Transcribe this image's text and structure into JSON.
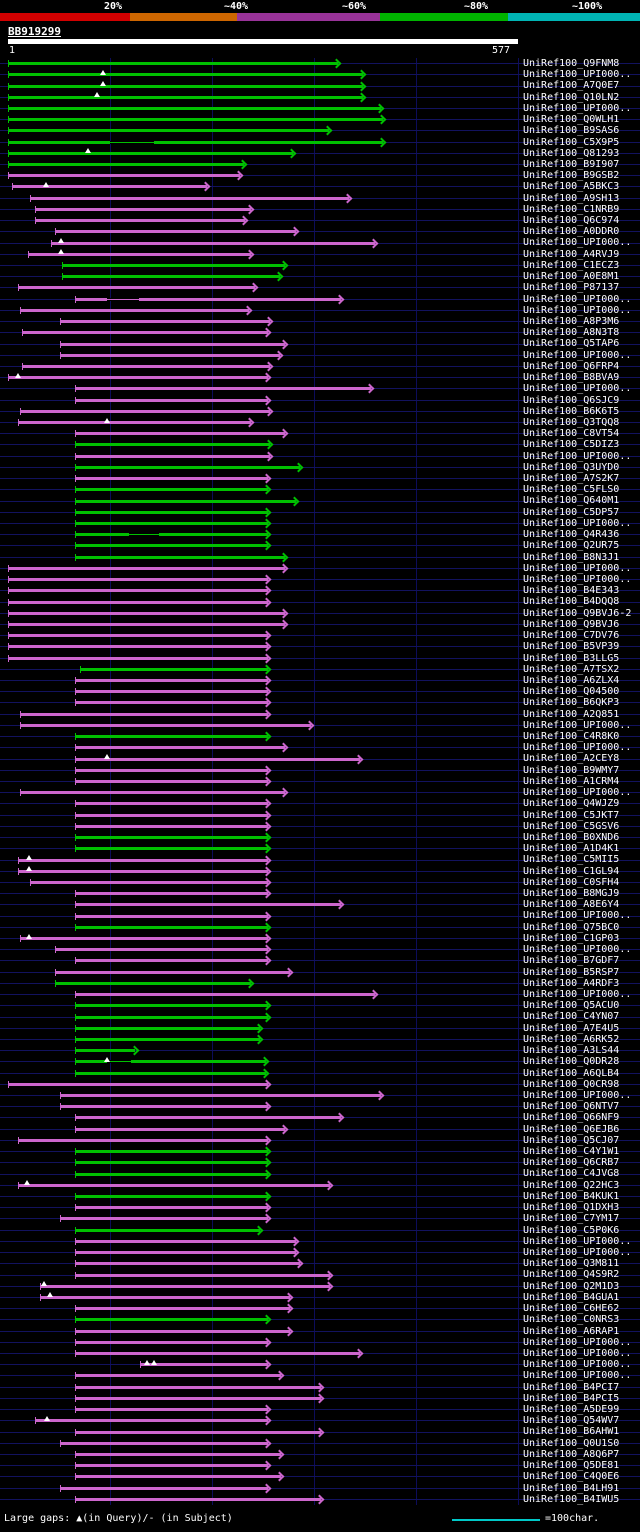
{
  "header": {
    "query_id": "BB919299"
  },
  "ruler": {
    "start": "1",
    "end": "577"
  },
  "scalebar": {
    "labels": [
      "20%",
      "~40%",
      "~60%",
      "~80%",
      "~100%"
    ],
    "segments": [
      {
        "color": "#d20000",
        "to_frac": 0.203
      },
      {
        "color": "#cd6600",
        "to_frac": 0.37
      },
      {
        "color": "#993399",
        "to_frac": 0.594
      },
      {
        "color": "#00b400",
        "to_frac": 0.794
      },
      {
        "color": "#00b4b4",
        "to_frac": 1.0
      }
    ]
  },
  "footer": {
    "gaps_legend": "Large gaps: ▲(in Query)/- (in Subject)",
    "scale_legend": "=100char.",
    "scale_line_color": "#00c8c8"
  },
  "chart_data": {
    "type": "bar",
    "subtype": "blast-alignment-overview",
    "query_length": 577,
    "colors": {
      "green": "#00c000",
      "purple": "#cc66cc"
    },
    "row_format": [
      "label",
      "color",
      "query_start",
      "query_end",
      "query_gap_positions",
      "subject_gap_ranges"
    ],
    "rows": [
      [
        "UniRef100_Q9FNM8",
        "green",
        1,
        374,
        []
      ],
      [
        "UniRef100_UPI000..",
        "green",
        1,
        402,
        [
          108
        ]
      ],
      [
        "UniRef100_A7Q0E7",
        "green",
        1,
        402,
        [
          108
        ]
      ],
      [
        "UniRef100_Q10LN2",
        "green",
        1,
        402,
        [
          102
        ]
      ],
      [
        "UniRef100_UPI000..",
        "green",
        1,
        422,
        []
      ],
      [
        "UniRef100_Q0WLH1",
        "green",
        1,
        424,
        []
      ],
      [
        "UniRef100_B9SAS6",
        "green",
        1,
        363,
        []
      ],
      [
        "UniRef100_C5X9P5",
        "green",
        1,
        424,
        [],
        [
          [
            116,
            166
          ]
        ]
      ],
      [
        "UniRef100_Q81293",
        "green",
        1,
        323,
        [
          91
        ]
      ],
      [
        "UniRef100_B9I907",
        "green",
        1,
        268,
        []
      ],
      [
        "UniRef100_B9GSB2",
        "purple",
        1,
        263,
        []
      ],
      [
        "UniRef100_A5BKC3",
        "purple",
        6,
        226,
        [
          44
        ]
      ],
      [
        "UniRef100_A9SH13",
        "purple",
        26,
        386,
        []
      ],
      [
        "UniRef100_C1NRB9",
        "purple",
        32,
        275,
        []
      ],
      [
        "UniRef100_Q6C974",
        "purple",
        32,
        269,
        []
      ],
      [
        "UniRef100_A0DDR0",
        "purple",
        54,
        326,
        []
      ],
      [
        "UniRef100_UPI000..",
        "purple",
        49,
        416,
        [
          61
        ]
      ],
      [
        "UniRef100_A4RVJ9",
        "purple",
        24,
        275,
        [
          61
        ]
      ],
      [
        "UniRef100_C1ECZ3",
        "green",
        62,
        314,
        []
      ],
      [
        "UniRef100_A0E8M1",
        "green",
        62,
        308,
        []
      ],
      [
        "UniRef100_P87137",
        "purple",
        12,
        280,
        []
      ],
      [
        "UniRef100_UPI000..",
        "purple",
        77,
        377,
        [],
        [
          [
            113,
            149
          ]
        ]
      ],
      [
        "UniRef100_UPI000..",
        "purple",
        15,
        273,
        []
      ],
      [
        "UniRef100_A8P3M6",
        "purple",
        60,
        297,
        []
      ],
      [
        "UniRef100_A8N3T8",
        "purple",
        17,
        295,
        []
      ],
      [
        "UniRef100_Q5TAP6",
        "purple",
        60,
        314,
        []
      ],
      [
        "UniRef100_UPI000..",
        "purple",
        60,
        308,
        []
      ],
      [
        "UniRef100_Q6FRP4",
        "purple",
        17,
        297,
        []
      ],
      [
        "UniRef100_B8BVA9",
        "purple",
        1,
        295,
        [
          12
        ]
      ],
      [
        "UniRef100_UPI000..",
        "purple",
        77,
        411,
        []
      ],
      [
        "UniRef100_Q6SJC9",
        "purple",
        77,
        295,
        []
      ],
      [
        "UniRef100_B6K6T5",
        "purple",
        15,
        297,
        []
      ],
      [
        "UniRef100_Q3TQQ8",
        "purple",
        12,
        275,
        [
          113
        ]
      ],
      [
        "UniRef100_C8VT54",
        "purple",
        77,
        314,
        []
      ],
      [
        "UniRef100_C5DIZ3",
        "green",
        77,
        297,
        []
      ],
      [
        "UniRef100_UPI000..",
        "purple",
        77,
        297,
        []
      ],
      [
        "UniRef100_Q3UYD0",
        "green",
        77,
        331,
        []
      ],
      [
        "UniRef100_A7S2K7",
        "purple",
        77,
        295,
        []
      ],
      [
        "UniRef100_C5FLS0",
        "green",
        77,
        295,
        []
      ],
      [
        "UniRef100_Q640M1",
        "green",
        77,
        326,
        []
      ],
      [
        "UniRef100_C5DP57",
        "green",
        77,
        295,
        []
      ],
      [
        "UniRef100_UPI000..",
        "green",
        77,
        295,
        []
      ],
      [
        "UniRef100_Q4R436",
        "green",
        77,
        295,
        [],
        [
          [
            138,
            171
          ]
        ]
      ],
      [
        "UniRef100_Q2UR75",
        "green",
        77,
        295,
        []
      ],
      [
        "UniRef100_B8N3J1",
        "green",
        77,
        314,
        []
      ],
      [
        "UniRef100_UPI000..",
        "purple",
        1,
        314,
        []
      ],
      [
        "UniRef100_UPI000..",
        "purple",
        1,
        295,
        []
      ],
      [
        "UniRef100_B4E343",
        "purple",
        1,
        295,
        []
      ],
      [
        "UniRef100_B4DQQ8",
        "purple",
        1,
        295,
        []
      ],
      [
        "UniRef100_Q9BVJ6-2",
        "purple",
        1,
        314,
        []
      ],
      [
        "UniRef100_Q9BVJ6",
        "purple",
        1,
        314,
        []
      ],
      [
        "UniRef100_C7DV76",
        "purple",
        1,
        295,
        []
      ],
      [
        "UniRef100_B5VP39",
        "purple",
        1,
        295,
        []
      ],
      [
        "UniRef100_B3LLG5",
        "purple",
        1,
        295,
        []
      ],
      [
        "UniRef100_A7TSX2",
        "green",
        82,
        295,
        []
      ],
      [
        "UniRef100_A6ZLX4",
        "purple",
        77,
        295,
        []
      ],
      [
        "UniRef100_Q04500",
        "purple",
        77,
        295,
        []
      ],
      [
        "UniRef100_B6QKP3",
        "purple",
        77,
        295,
        []
      ],
      [
        "UniRef100_A2Q851",
        "purple",
        15,
        295,
        []
      ],
      [
        "UniRef100_UPI000..",
        "purple",
        15,
        343,
        []
      ],
      [
        "UniRef100_C4R8K0",
        "green",
        77,
        295,
        []
      ],
      [
        "UniRef100_UPI000..",
        "purple",
        77,
        314,
        []
      ],
      [
        "UniRef100_A2CEY8",
        "purple",
        77,
        399,
        [
          113
        ]
      ],
      [
        "UniRef100_B9WMY7",
        "purple",
        77,
        295,
        []
      ],
      [
        "UniRef100_A1CRM4",
        "purple",
        77,
        295,
        []
      ],
      [
        "UniRef100_UPI000..",
        "purple",
        15,
        314,
        []
      ],
      [
        "UniRef100_Q4WJZ9",
        "purple",
        77,
        295,
        []
      ],
      [
        "UniRef100_C5JKT7",
        "purple",
        77,
        295,
        []
      ],
      [
        "UniRef100_C5GSV6",
        "purple",
        77,
        295,
        []
      ],
      [
        "UniRef100_B0XND6",
        "green",
        77,
        295,
        []
      ],
      [
        "UniRef100_A1D4K1",
        "green",
        77,
        295,
        []
      ],
      [
        "UniRef100_C5MII5",
        "purple",
        12,
        295,
        [
          25
        ]
      ],
      [
        "UniRef100_C1GL94",
        "purple",
        12,
        295,
        [
          25
        ]
      ],
      [
        "UniRef100_C0SFH4",
        "purple",
        26,
        295,
        []
      ],
      [
        "UniRef100_B8MGJ9",
        "purple",
        77,
        295,
        []
      ],
      [
        "UniRef100_A8E6Y4",
        "purple",
        77,
        377,
        []
      ],
      [
        "UniRef100_UPI000..",
        "purple",
        77,
        295,
        []
      ],
      [
        "UniRef100_Q75BC0",
        "green",
        77,
        295,
        []
      ],
      [
        "UniRef100_C1GP03",
        "purple",
        15,
        295,
        [
          25
        ]
      ],
      [
        "UniRef100_UPI000..",
        "purple",
        54,
        295,
        []
      ],
      [
        "UniRef100_B7GDF7",
        "purple",
        77,
        295,
        []
      ],
      [
        "UniRef100_B5RSP7",
        "purple",
        54,
        320,
        []
      ],
      [
        "UniRef100_A4RDF3",
        "green",
        54,
        275,
        []
      ],
      [
        "UniRef100_UPI000..",
        "purple",
        77,
        416,
        []
      ],
      [
        "UniRef100_Q5ACU0",
        "green",
        77,
        295,
        []
      ],
      [
        "UniRef100_C4YN07",
        "green",
        77,
        295,
        []
      ],
      [
        "UniRef100_A7E4U5",
        "green",
        77,
        286,
        []
      ],
      [
        "UniRef100_A6RK52",
        "green",
        77,
        286,
        []
      ],
      [
        "UniRef100_A3LS44",
        "green",
        77,
        145,
        []
      ],
      [
        "UniRef100_Q0DR28",
        "green",
        77,
        292,
        [
          113
        ],
        [
          [
            113,
            140
          ]
        ]
      ],
      [
        "UniRef100_A6QLB4",
        "green",
        77,
        292,
        []
      ],
      [
        "UniRef100_Q0CR98",
        "purple",
        1,
        295,
        []
      ],
      [
        "UniRef100_UPI000..",
        "purple",
        60,
        422,
        []
      ],
      [
        "UniRef100_Q6NTV7",
        "purple",
        60,
        295,
        []
      ],
      [
        "UniRef100_Q66NF9",
        "purple",
        77,
        377,
        []
      ],
      [
        "UniRef100_Q6EJB6",
        "purple",
        77,
        314,
        []
      ],
      [
        "UniRef100_Q5CJ07",
        "purple",
        12,
        295,
        []
      ],
      [
        "UniRef100_C4Y1W1",
        "green",
        77,
        295,
        []
      ],
      [
        "UniRef100_Q6CRB7",
        "green",
        77,
        295,
        []
      ],
      [
        "UniRef100_C4JVG8",
        "green",
        77,
        295,
        []
      ],
      [
        "UniRef100_Q22HC3",
        "purple",
        12,
        365,
        [
          23
        ]
      ],
      [
        "UniRef100_B4KUK1",
        "green",
        77,
        295,
        []
      ],
      [
        "UniRef100_Q1DXH3",
        "purple",
        77,
        295,
        []
      ],
      [
        "UniRef100_C7YM17",
        "purple",
        60,
        295,
        []
      ],
      [
        "UniRef100_C5P0K6",
        "green",
        77,
        286,
        []
      ],
      [
        "UniRef100_UPI000..",
        "purple",
        77,
        326,
        []
      ],
      [
        "UniRef100_UPI000..",
        "purple",
        77,
        326,
        []
      ],
      [
        "UniRef100_Q3M811",
        "purple",
        77,
        331,
        []
      ],
      [
        "UniRef100_Q4S9R2",
        "purple",
        77,
        365,
        []
      ],
      [
        "UniRef100_Q2M1D3",
        "purple",
        37,
        365,
        [
          42
        ]
      ],
      [
        "UniRef100_B4GUA1",
        "purple",
        37,
        320,
        [
          48
        ]
      ],
      [
        "UniRef100_C6HE62",
        "purple",
        77,
        320,
        []
      ],
      [
        "UniRef100_C0NRS3",
        "green",
        77,
        295,
        []
      ],
      [
        "UniRef100_A6RAP1",
        "purple",
        77,
        320,
        []
      ],
      [
        "UniRef100_UPI000..",
        "purple",
        77,
        295,
        []
      ],
      [
        "UniRef100_UPI000..",
        "purple",
        77,
        399,
        []
      ],
      [
        "UniRef100_UPI000..",
        "purple",
        150,
        295,
        [
          158,
          166
        ]
      ],
      [
        "UniRef100_UPI000..",
        "purple",
        77,
        309,
        []
      ],
      [
        "UniRef100_B4PCI7",
        "purple",
        77,
        354,
        []
      ],
      [
        "UniRef100_B4PCI5",
        "purple",
        77,
        354,
        []
      ],
      [
        "UniRef100_A5DE99",
        "purple",
        77,
        295,
        []
      ],
      [
        "UniRef100_Q54WV7",
        "purple",
        32,
        295,
        [
          45
        ]
      ],
      [
        "UniRef100_B6AHW1",
        "purple",
        77,
        354,
        []
      ],
      [
        "UniRef100_Q0U1S0",
        "purple",
        60,
        295,
        []
      ],
      [
        "UniRef100_A8Q6P7",
        "purple",
        77,
        309,
        []
      ],
      [
        "UniRef100_Q5DE81",
        "purple",
        77,
        295,
        []
      ],
      [
        "UniRef100_C4Q0E6",
        "purple",
        77,
        309,
        []
      ],
      [
        "UniRef100_B4LH91",
        "purple",
        60,
        295,
        []
      ],
      [
        "UniRef100_B4IWU5",
        "purple",
        77,
        354,
        []
      ]
    ]
  }
}
